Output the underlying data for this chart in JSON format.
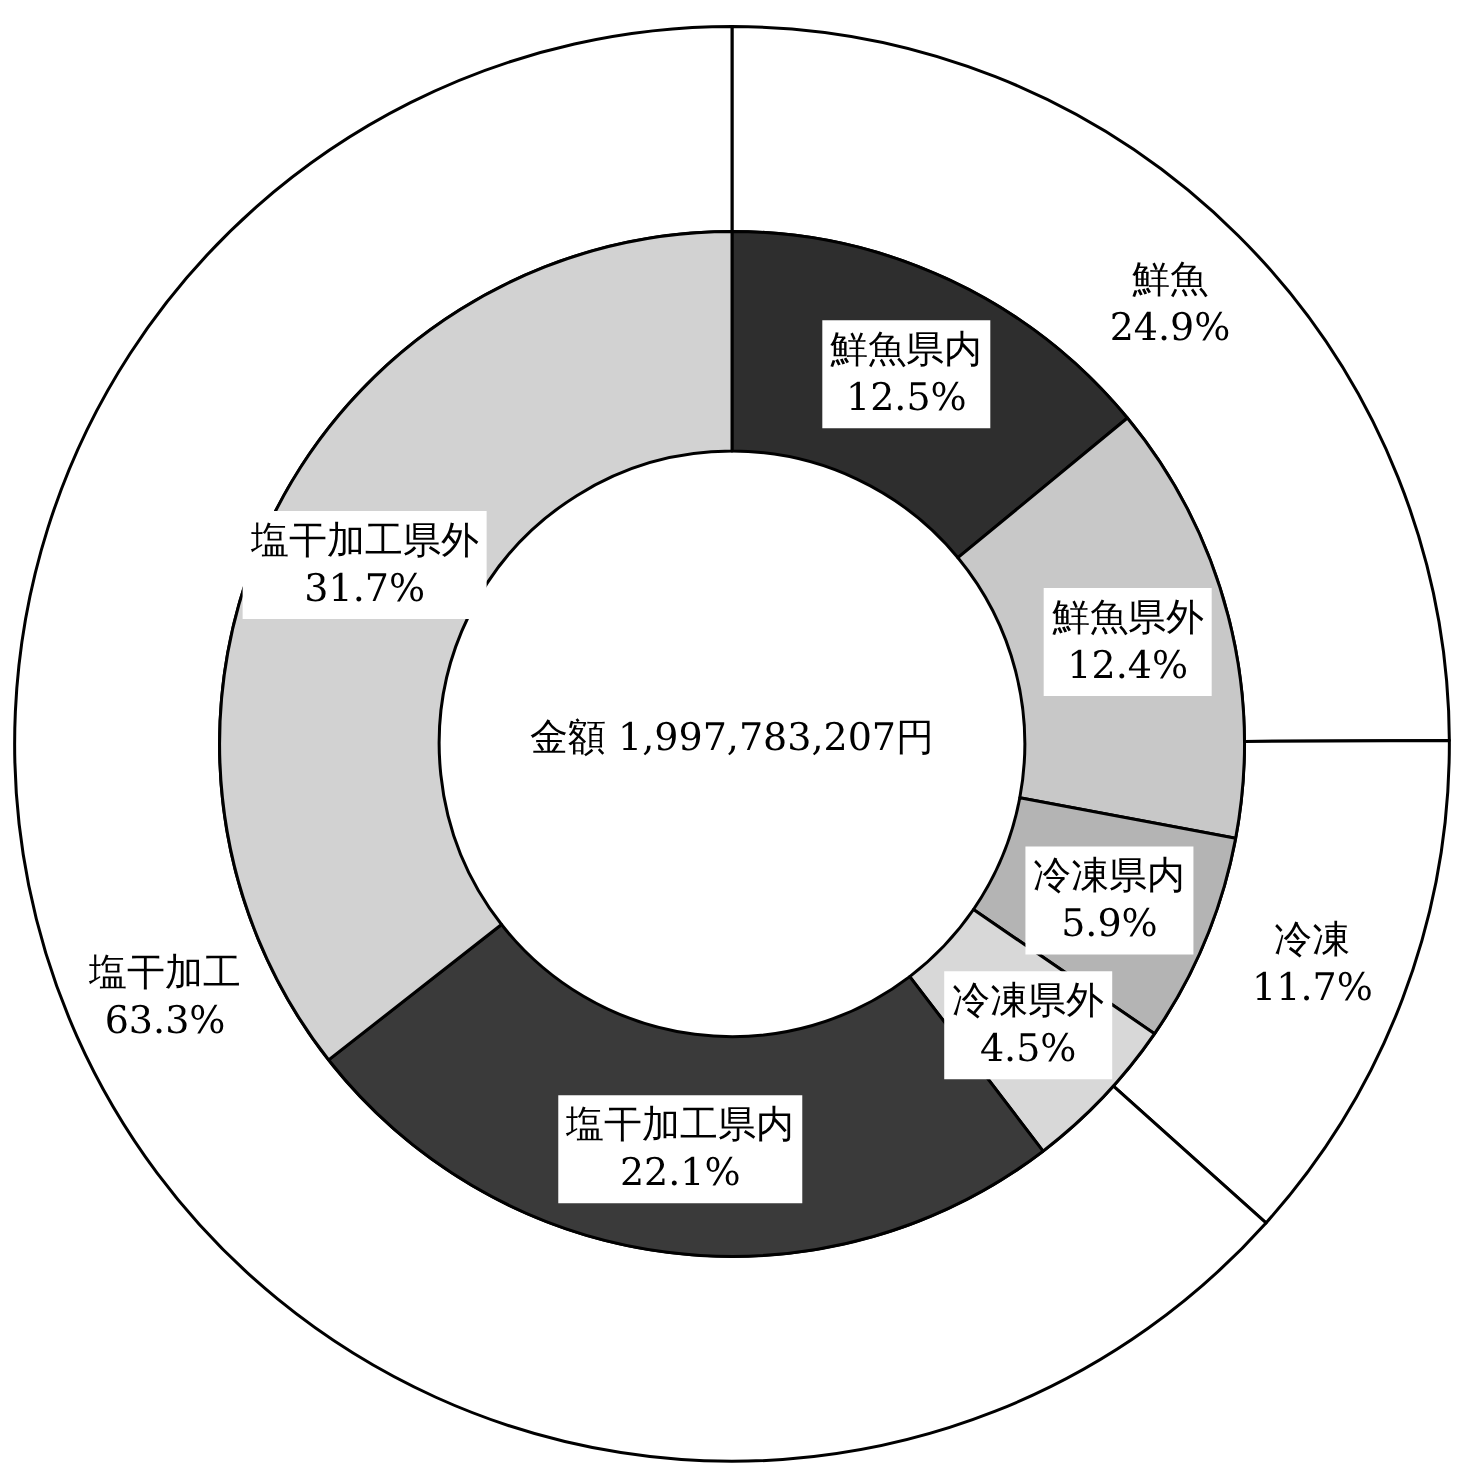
{
  "chart_data": [
    {
      "type": "donut",
      "categories": [
        "鮮魚",
        "冷凍",
        "塩干加工"
      ],
      "values": [
        24.9,
        11.7,
        63.3
      ],
      "value_labels": [
        "24.9%",
        "11.7%",
        "63.3%"
      ],
      "colors": [
        "#ffffff",
        "#ffffff",
        "#ffffff"
      ]
    },
    {
      "type": "donut",
      "annotations": [
        "金額 1,997,783,207円"
      ],
      "categories": [
        "鮮魚県内",
        "鮮魚県外",
        "冷凍県内",
        "冷凍県外",
        "塩干加工県内",
        "塩干加工県外"
      ],
      "values": [
        12.5,
        12.4,
        5.9,
        4.5,
        22.1,
        31.7
      ],
      "value_labels": [
        "12.5%",
        "12.4%",
        "5.9%",
        "4.5%",
        "22.1%",
        "31.7%"
      ],
      "colors": [
        "#2e2e2e",
        "#c8c8c8",
        "#b4b4b4",
        "#d8d8d8",
        "#3a3a3a",
        "#d2d2d2"
      ]
    }
  ]
}
